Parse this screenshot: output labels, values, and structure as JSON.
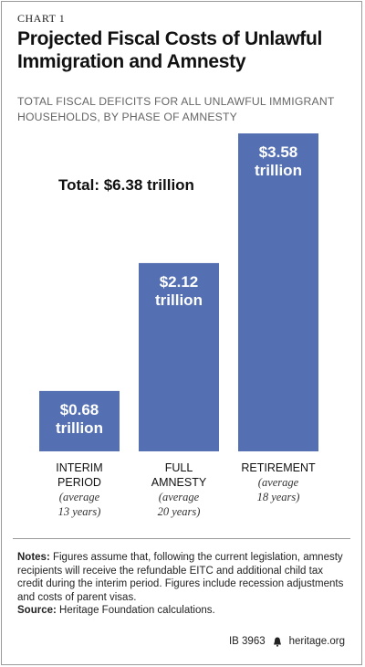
{
  "header": {
    "chart_label": "CHART 1",
    "title": "Projected Fiscal Costs of Unlawful Immigration and Amnesty",
    "subtitle": "TOTAL FISCAL DEFICITS FOR ALL UNLAWFUL IMMIGRANT HOUSEHOLDS, BY PHASE OF AMNESTY"
  },
  "annotation": {
    "total": "Total: $6.38 trillion"
  },
  "chart_data": {
    "type": "bar",
    "categories": [
      "INTERIM PERIOD",
      "FULL AMNESTY",
      "RETIREMENT"
    ],
    "values": [
      0.68,
      2.12,
      3.58
    ],
    "bar_labels": [
      [
        "$0.68",
        "trillion"
      ],
      [
        "$2.12",
        "trillion"
      ],
      [
        "$3.58",
        "trillion"
      ]
    ],
    "category_lines": [
      [
        "INTERIM",
        "PERIOD"
      ],
      [
        "FULL",
        "AMNESTY"
      ],
      [
        "RETIREMENT"
      ]
    ],
    "category_subtitles": [
      [
        "(average",
        "13 years)"
      ],
      [
        "(average",
        "20 years)"
      ],
      [
        "(average",
        "18 years)"
      ]
    ],
    "ylim": [
      0,
      3.58
    ],
    "color": "#5470b2",
    "grid": false,
    "legend": "none"
  },
  "notes": {
    "notes_label": "Notes:",
    "notes_text": " Figures assume that, following the current legislation, amnesty recipients will receive the refundable EITC and additional child tax credit during the interim period. Figures include recession adjustments and costs of parent visas.",
    "source_label": "Source:",
    "source_text": " Heritage Foundation calculations."
  },
  "footer": {
    "report_id": "IB 3963",
    "site": "heritage.org"
  }
}
